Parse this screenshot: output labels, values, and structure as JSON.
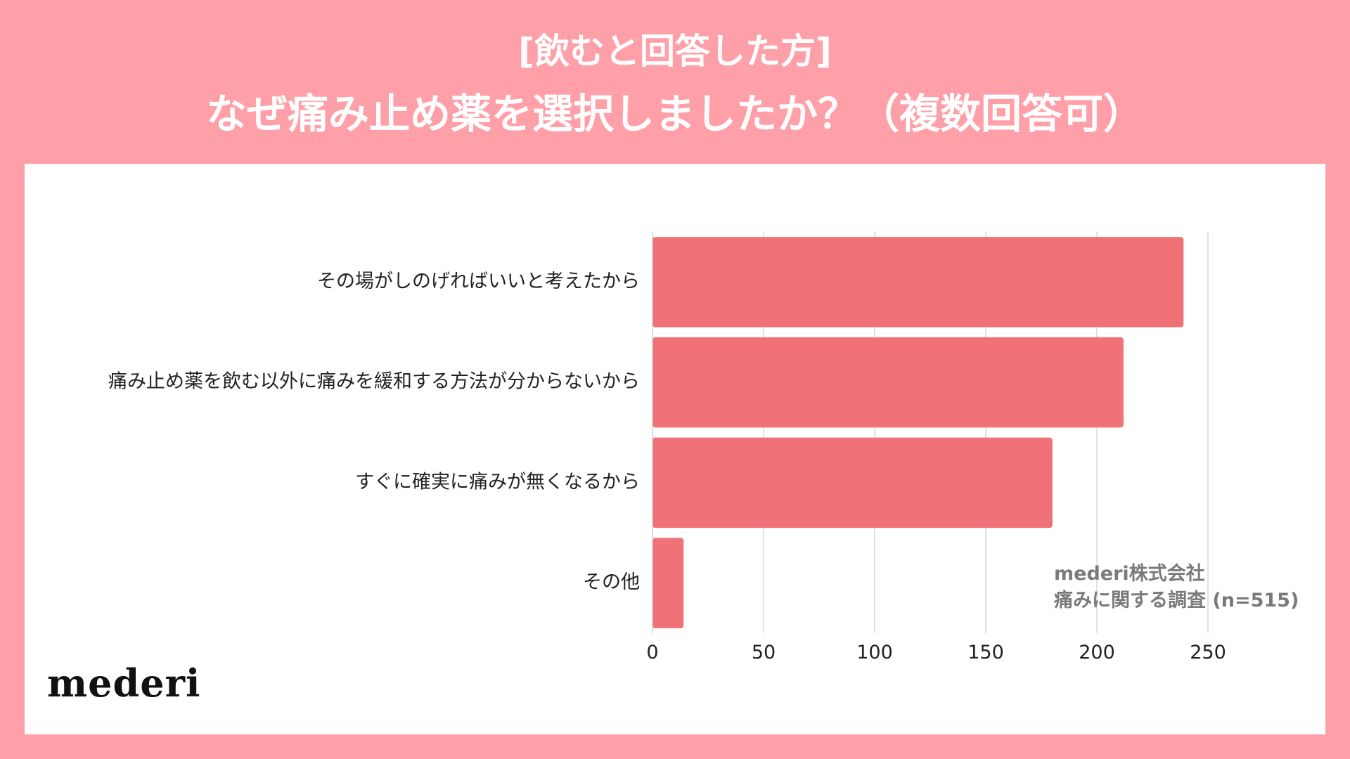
{
  "header": {
    "subtitle": "[飲むと回答した方]",
    "title": "なぜ痛み止め薬を選択しましたか？（複数回答可）"
  },
  "colors": {
    "background": "#FF9FA7",
    "bar": "#F07178",
    "panel": "#FFFFFF",
    "grid": "#D9D9D9",
    "source_text": "#7A7A7A"
  },
  "source": {
    "line1": "mederi株式会社",
    "line2": "痛みに関する調査 (n=515)"
  },
  "logo": "mederi",
  "chart_data": {
    "type": "bar",
    "orientation": "horizontal",
    "categories": [
      "その場がしのげればいいと考えたから",
      "痛み止め薬を飲む以外に痛みを緩和する方法が分からないから",
      "すぐに確実に痛みが無くなるから",
      "その他"
    ],
    "values": [
      239,
      212,
      180,
      14
    ],
    "xlim": [
      0,
      250
    ],
    "xticks": [
      0,
      50,
      100,
      150,
      200,
      250
    ],
    "grid": "vertical",
    "legend": "none"
  }
}
